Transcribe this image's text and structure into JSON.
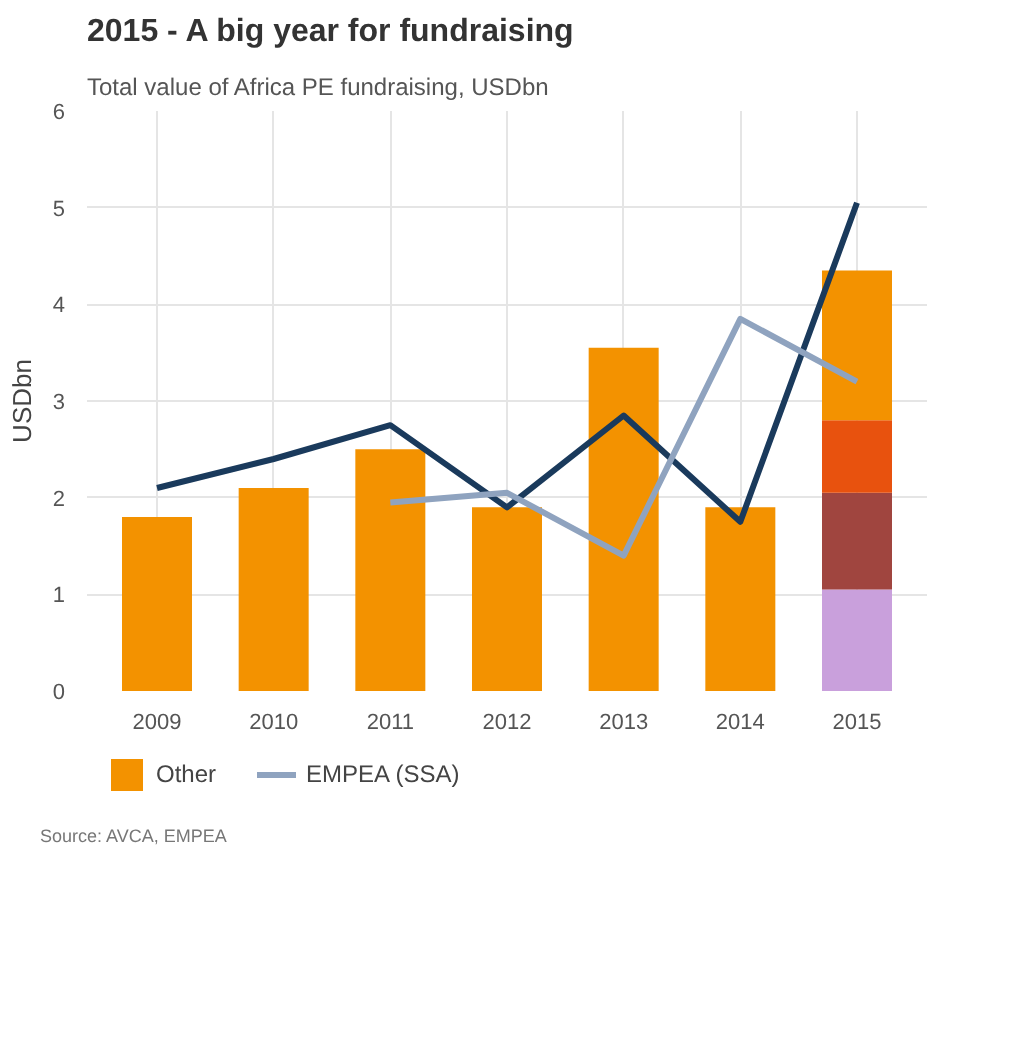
{
  "chart_data": {
    "type": "bar",
    "title": "2015 - A big year for fundraising",
    "subtitle": "Total value of Africa PE fundraising, USDbn",
    "ylabel": "USDbn",
    "categories": [
      "2009",
      "2010",
      "2011",
      "2012",
      "2013",
      "2014",
      "2015"
    ],
    "stacked": true,
    "ylim": [
      0,
      6
    ],
    "yticks": [
      0,
      1,
      2,
      3,
      4,
      5,
      6
    ],
    "grid": true,
    "legend": "bottom",
    "series": [
      {
        "color": "#c9a0dc",
        "values": [
          null,
          null,
          null,
          null,
          null,
          null,
          1.05
        ]
      },
      {
        "color": "#a0453f",
        "values": [
          null,
          null,
          null,
          null,
          null,
          null,
          1.0
        ]
      },
      {
        "color": "#e8520e",
        "values": [
          null,
          null,
          null,
          null,
          null,
          null,
          0.75
        ]
      },
      {
        "name": "Other",
        "color": "#f39200",
        "values": [
          1.8,
          2.1,
          2.5,
          1.9,
          3.55,
          1.9,
          1.55
        ]
      },
      {
        "type": "line",
        "color": "#1a3a5c",
        "values": [
          2.1,
          2.4,
          2.75,
          1.9,
          2.85,
          1.75,
          5.05
        ]
      },
      {
        "type": "line",
        "name": "EMPEA (SSA)",
        "color": "#8fa3bf",
        "values": [
          null,
          null,
          1.95,
          2.05,
          1.4,
          3.85,
          3.2
        ]
      }
    ],
    "annotations": [
      "Source: AVCA, EMPEA"
    ]
  }
}
